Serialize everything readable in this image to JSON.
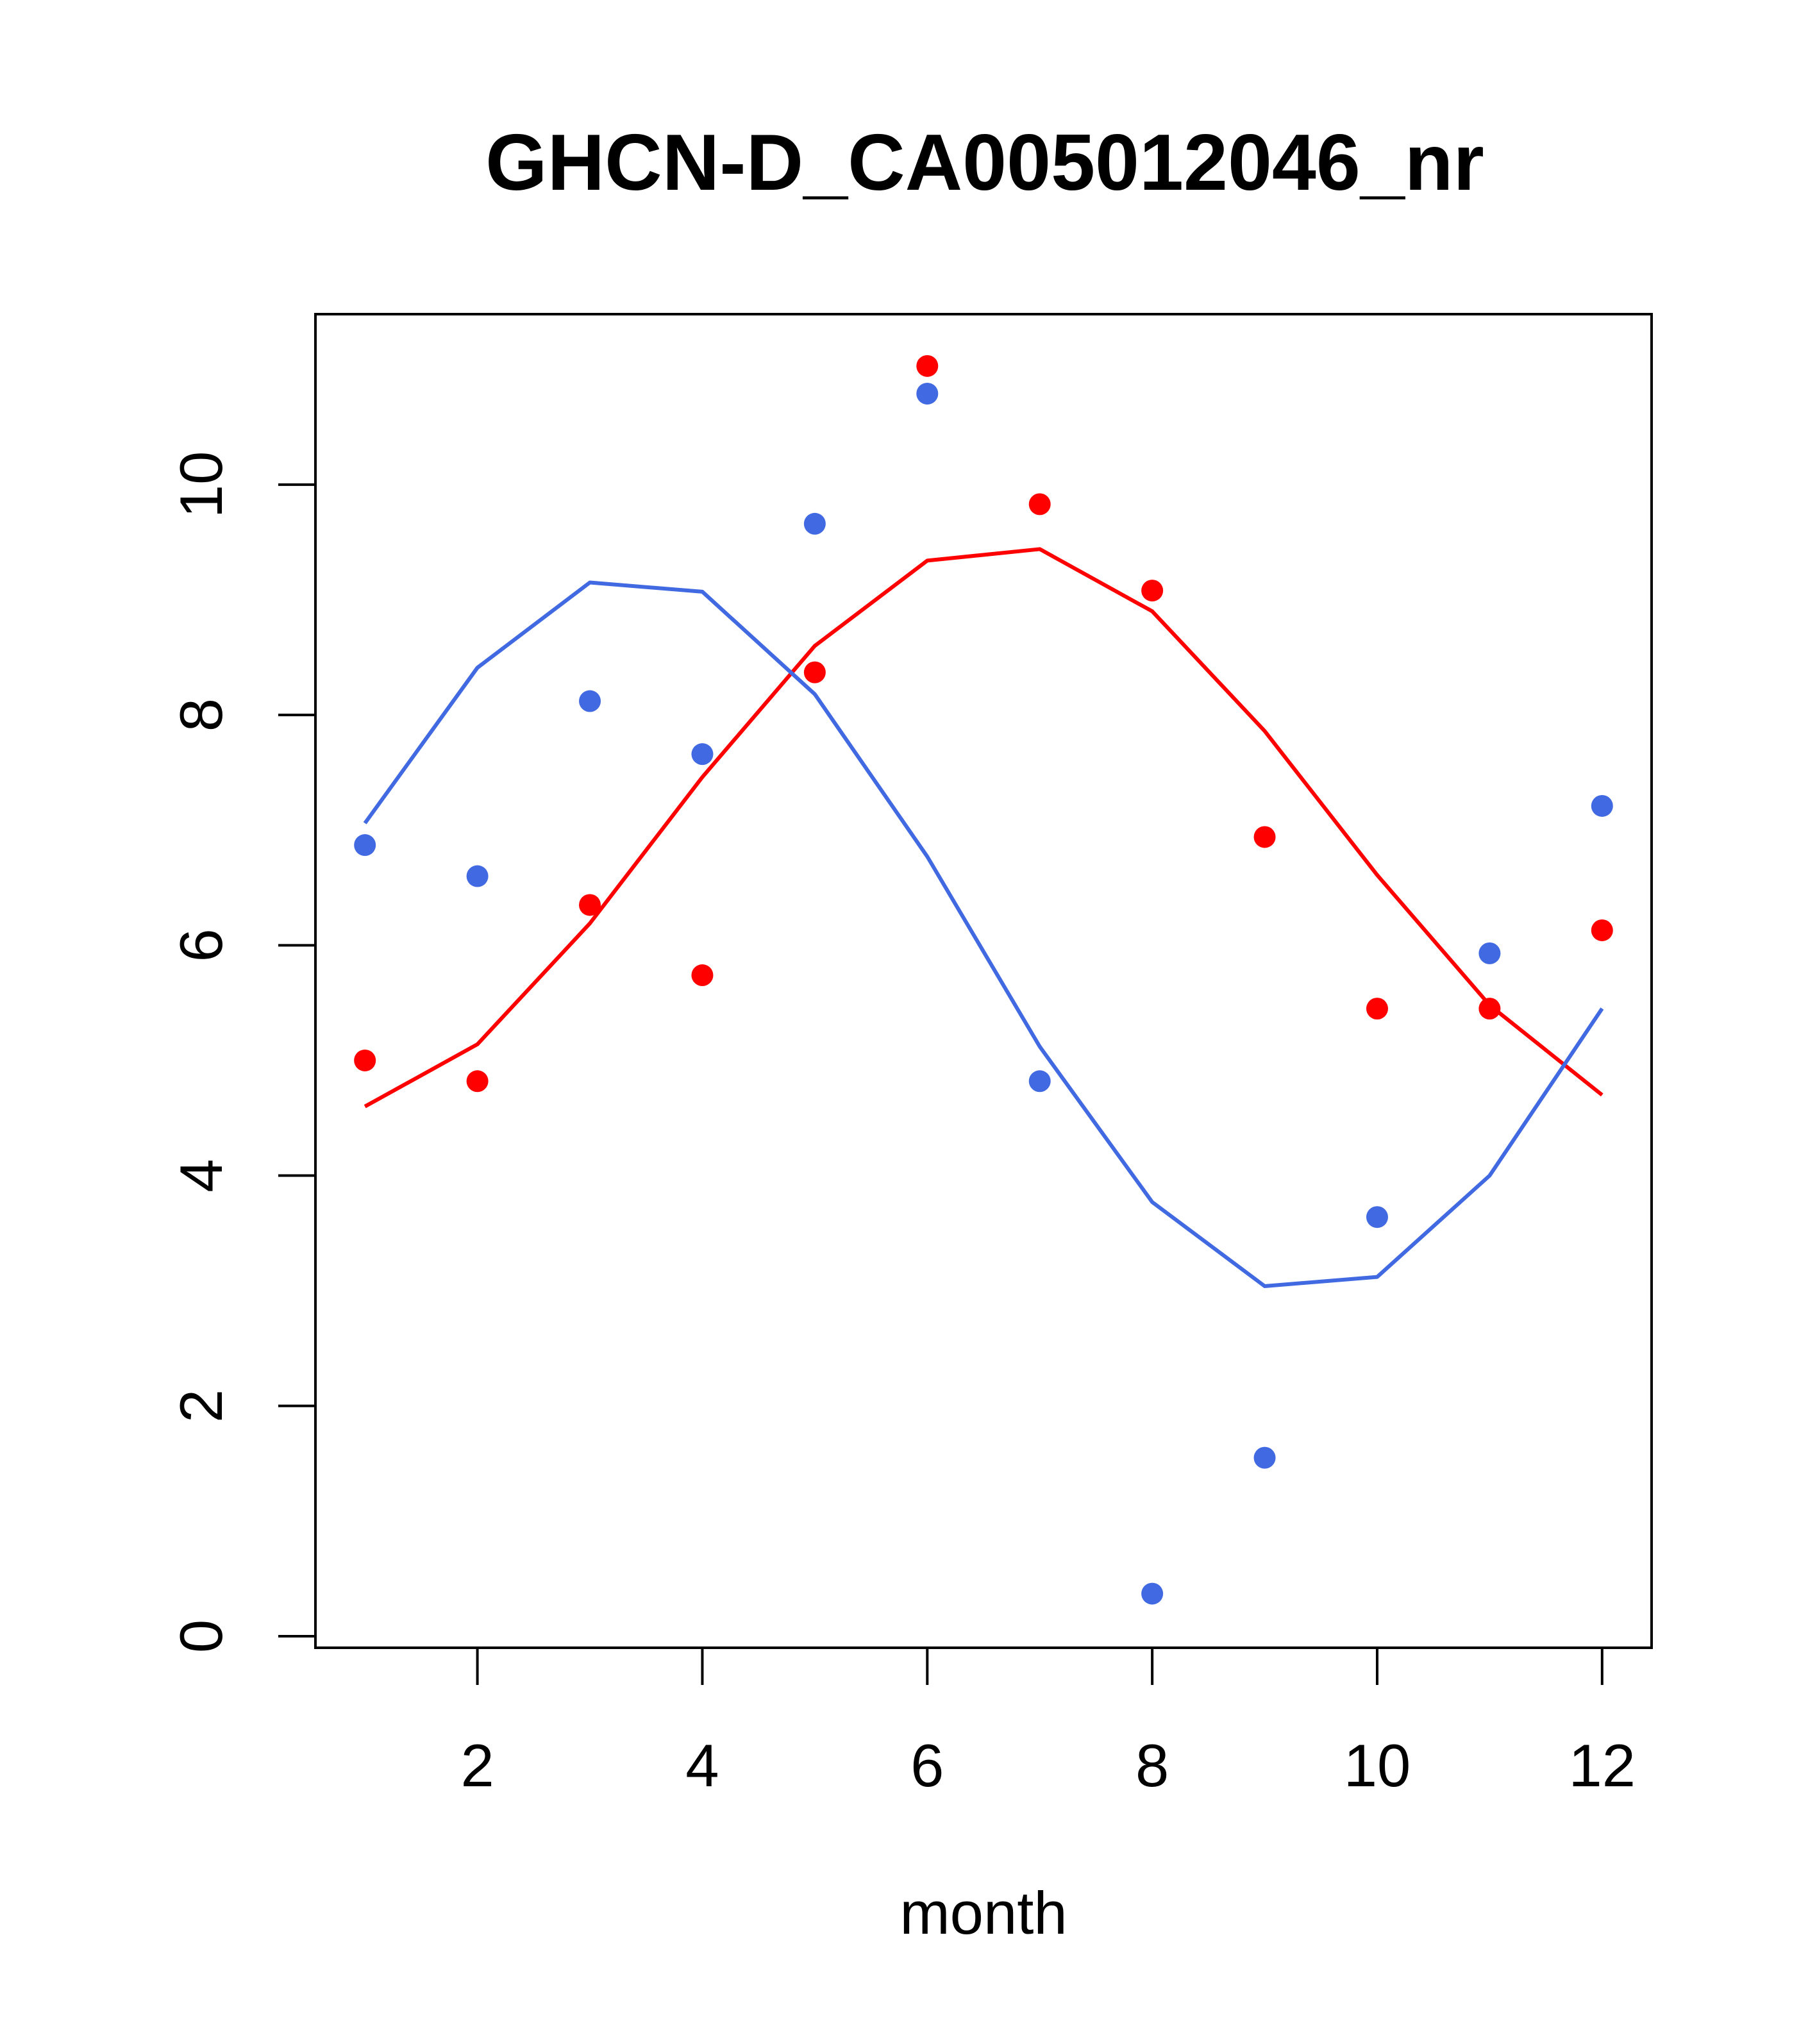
{
  "chart_data": {
    "type": "scatter",
    "title": "GHCN-D_CA005012046_nr",
    "xlabel": "month",
    "ylabel": "",
    "xlim": [
      0.56,
      12.44
    ],
    "ylim": [
      -0.1,
      11.48
    ],
    "x_ticks": [
      2,
      4,
      6,
      8,
      10,
      12
    ],
    "y_ticks": [
      0,
      2,
      4,
      6,
      8,
      10
    ],
    "x_tick_labels": [
      "2",
      "4",
      "6",
      "8",
      "10",
      "12"
    ],
    "y_tick_labels": [
      "0",
      "2",
      "4",
      "6",
      "8",
      "10"
    ],
    "grid": false,
    "legend": "none",
    "x": [
      1,
      2,
      3,
      4,
      5,
      6,
      7,
      8,
      9,
      10,
      11,
      12
    ],
    "series": [
      {
        "color": "#FF0000",
        "points": [
          5.0,
          4.82,
          6.35,
          5.74,
          8.37,
          11.03,
          9.83,
          9.08,
          6.94,
          5.45,
          5.45,
          6.13
        ],
        "fit": [
          4.6,
          5.14,
          6.19,
          7.46,
          8.6,
          9.34,
          9.44,
          8.9,
          7.86,
          6.61,
          5.48,
          4.7
        ]
      },
      {
        "color": "#4169E1",
        "points": [
          6.87,
          6.6,
          8.12,
          7.66,
          9.66,
          10.79,
          4.82,
          0.37,
          1.55,
          3.64,
          5.93,
          7.21
        ],
        "fit": [
          7.06,
          8.41,
          9.15,
          9.07,
          8.18,
          6.77,
          5.12,
          3.77,
          3.04,
          3.12,
          4.0,
          5.45
        ]
      }
    ]
  }
}
